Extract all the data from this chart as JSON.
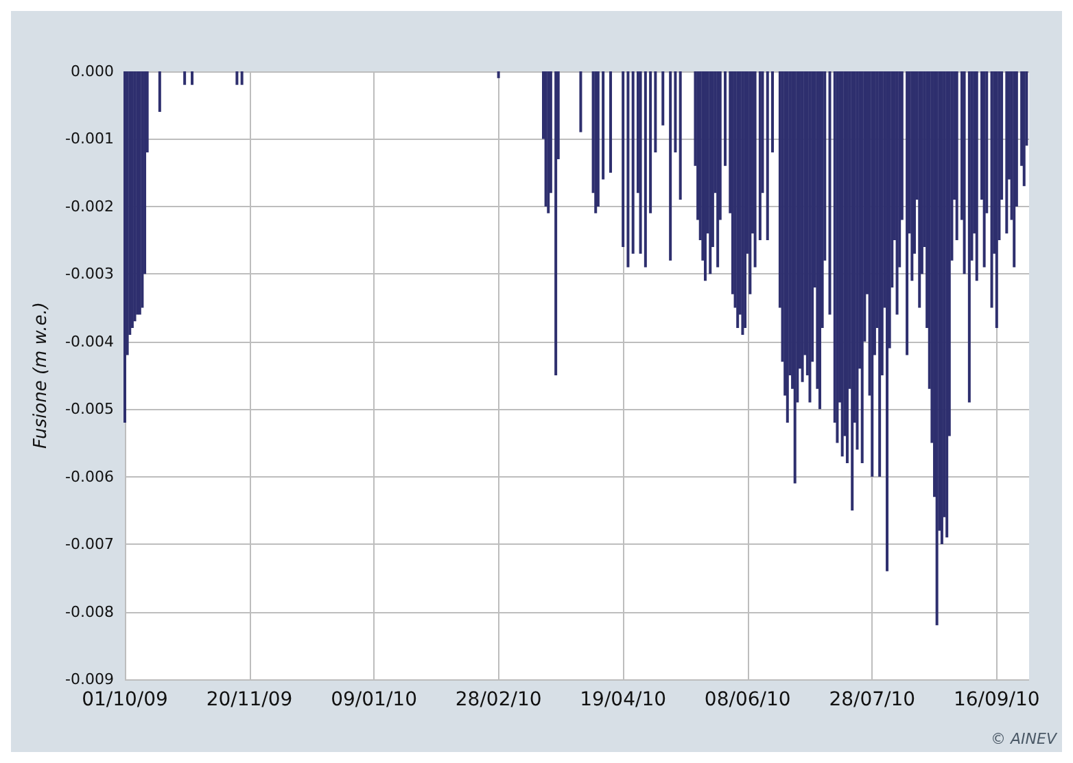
{
  "chart_data": {
    "type": "bar",
    "ylabel": "Fusione (m w.e.)",
    "annotations": [
      "© AINEV"
    ],
    "x": [
      "2009-10-01",
      "2009-10-02",
      "2009-10-03",
      "2009-10-04",
      "2009-10-05",
      "2009-10-06",
      "2009-10-07",
      "2009-10-08",
      "2009-10-09",
      "2009-10-10",
      "2009-10-15",
      "2009-10-25",
      "2009-10-28",
      "2009-11-15",
      "2009-11-17",
      "2010-02-28",
      "2010-03-18",
      "2010-03-19",
      "2010-03-20",
      "2010-03-21",
      "2010-03-23",
      "2010-03-24",
      "2010-04-02",
      "2010-04-07",
      "2010-04-08",
      "2010-04-09",
      "2010-04-11",
      "2010-04-14",
      "2010-04-19",
      "2010-04-21",
      "2010-04-23",
      "2010-04-25",
      "2010-04-26",
      "2010-04-28",
      "2010-04-30",
      "2010-05-02",
      "2010-05-05",
      "2010-05-08",
      "2010-05-10",
      "2010-05-12",
      "2010-05-18",
      "2010-05-19",
      "2010-05-20",
      "2010-05-21",
      "2010-05-22",
      "2010-05-23",
      "2010-05-24",
      "2010-05-25",
      "2010-05-26",
      "2010-05-27",
      "2010-05-28",
      "2010-05-30",
      "2010-06-01",
      "2010-06-02",
      "2010-06-03",
      "2010-06-04",
      "2010-06-05",
      "2010-06-06",
      "2010-06-07",
      "2010-06-08",
      "2010-06-09",
      "2010-06-10",
      "2010-06-11",
      "2010-06-13",
      "2010-06-14",
      "2010-06-16",
      "2010-06-18",
      "2010-06-21",
      "2010-06-22",
      "2010-06-23",
      "2010-06-24",
      "2010-06-25",
      "2010-06-26",
      "2010-06-27",
      "2010-06-28",
      "2010-06-29",
      "2010-06-30",
      "2010-07-01",
      "2010-07-02",
      "2010-07-03",
      "2010-07-04",
      "2010-07-05",
      "2010-07-06",
      "2010-07-07",
      "2010-07-08",
      "2010-07-09",
      "2010-07-11",
      "2010-07-13",
      "2010-07-14",
      "2010-07-15",
      "2010-07-16",
      "2010-07-17",
      "2010-07-18",
      "2010-07-19",
      "2010-07-20",
      "2010-07-21",
      "2010-07-22",
      "2010-07-23",
      "2010-07-24",
      "2010-07-25",
      "2010-07-26",
      "2010-07-27",
      "2010-07-28",
      "2010-07-29",
      "2010-07-30",
      "2010-07-31",
      "2010-08-01",
      "2010-08-02",
      "2010-08-03",
      "2010-08-04",
      "2010-08-05",
      "2010-08-06",
      "2010-08-07",
      "2010-08-08",
      "2010-08-09",
      "2010-08-11",
      "2010-08-12",
      "2010-08-13",
      "2010-08-14",
      "2010-08-15",
      "2010-08-16",
      "2010-08-17",
      "2010-08-18",
      "2010-08-19",
      "2010-08-20",
      "2010-08-21",
      "2010-08-22",
      "2010-08-23",
      "2010-08-24",
      "2010-08-25",
      "2010-08-26",
      "2010-08-27",
      "2010-08-28",
      "2010-08-29",
      "2010-08-30",
      "2010-08-31",
      "2010-09-02",
      "2010-09-03",
      "2010-09-05",
      "2010-09-06",
      "2010-09-07",
      "2010-09-08",
      "2010-09-10",
      "2010-09-11",
      "2010-09-12",
      "2010-09-14",
      "2010-09-15",
      "2010-09-16",
      "2010-09-17",
      "2010-09-18",
      "2010-09-20",
      "2010-09-21",
      "2010-09-22",
      "2010-09-23",
      "2010-09-24",
      "2010-09-26",
      "2010-09-27",
      "2010-09-28"
    ],
    "series": [
      {
        "color": "#2e2f6e",
        "values": [
          -0.0052,
          -0.0042,
          -0.0039,
          -0.0038,
          -0.0037,
          -0.0036,
          -0.0036,
          -0.0035,
          -0.003,
          -0.0012,
          -0.0006,
          -0.0002,
          -0.0002,
          -0.0002,
          -0.0002,
          -0.0001,
          -0.001,
          -0.002,
          -0.0021,
          -0.0018,
          -0.0045,
          -0.0013,
          -0.0009,
          -0.0018,
          -0.0021,
          -0.002,
          -0.0016,
          -0.0015,
          -0.0026,
          -0.0029,
          -0.0027,
          -0.0018,
          -0.0027,
          -0.0029,
          -0.0021,
          -0.0012,
          -0.0008,
          -0.0028,
          -0.0012,
          -0.0019,
          -0.0014,
          -0.0022,
          -0.0025,
          -0.0028,
          -0.0031,
          -0.0024,
          -0.003,
          -0.0026,
          -0.0018,
          -0.0029,
          -0.0022,
          -0.0014,
          -0.0021,
          -0.0033,
          -0.0035,
          -0.0038,
          -0.0036,
          -0.0039,
          -0.0038,
          -0.0027,
          -0.0033,
          -0.0024,
          -0.0029,
          -0.0025,
          -0.0018,
          -0.0025,
          -0.0012,
          -0.0035,
          -0.0043,
          -0.0048,
          -0.0052,
          -0.0045,
          -0.0047,
          -0.0061,
          -0.0049,
          -0.0044,
          -0.0046,
          -0.0042,
          -0.0045,
          -0.0049,
          -0.0043,
          -0.0032,
          -0.0047,
          -0.005,
          -0.0038,
          -0.0028,
          -0.0036,
          -0.0052,
          -0.0055,
          -0.0049,
          -0.0057,
          -0.0054,
          -0.0058,
          -0.0047,
          -0.0065,
          -0.0052,
          -0.0056,
          -0.0044,
          -0.0058,
          -0.004,
          -0.0033,
          -0.0048,
          -0.006,
          -0.0042,
          -0.0038,
          -0.006,
          -0.0045,
          -0.0035,
          -0.0074,
          -0.0041,
          -0.0032,
          -0.0025,
          -0.0036,
          -0.0029,
          -0.0022,
          -0.0042,
          -0.0024,
          -0.0031,
          -0.0027,
          -0.0019,
          -0.0035,
          -0.003,
          -0.0026,
          -0.0038,
          -0.0047,
          -0.0055,
          -0.0063,
          -0.0082,
          -0.0068,
          -0.007,
          -0.0066,
          -0.0069,
          -0.0054,
          -0.0028,
          -0.0019,
          -0.0025,
          -0.0022,
          -0.003,
          -0.0049,
          -0.0028,
          -0.0024,
          -0.0031,
          -0.0019,
          -0.0029,
          -0.0021,
          -0.0035,
          -0.0027,
          -0.0038,
          -0.0025,
          -0.0019,
          -0.0024,
          -0.0016,
          -0.0022,
          -0.0029,
          -0.002,
          -0.0014,
          -0.0017,
          -0.0011
        ]
      }
    ],
    "xlim": [
      "2009-10-01",
      "2010-09-29"
    ],
    "xticks": [
      {
        "value": "2009-10-01",
        "label": "01/10/09"
      },
      {
        "value": "2009-11-20",
        "label": "20/11/09"
      },
      {
        "value": "2010-01-09",
        "label": "09/01/10"
      },
      {
        "value": "2010-02-28",
        "label": "28/02/10"
      },
      {
        "value": "2010-04-19",
        "label": "19/04/10"
      },
      {
        "value": "2010-06-08",
        "label": "08/06/10"
      },
      {
        "value": "2010-07-28",
        "label": "28/07/10"
      },
      {
        "value": "2010-09-16",
        "label": "16/09/10"
      }
    ],
    "ylim": [
      -0.009,
      0
    ],
    "yticks": [
      {
        "value": 0,
        "label": "0.000"
      },
      -0.001,
      -0.002,
      -0.003,
      -0.004,
      -0.005,
      -0.006,
      -0.007,
      -0.008,
      -0.009
    ],
    "grid": true
  }
}
